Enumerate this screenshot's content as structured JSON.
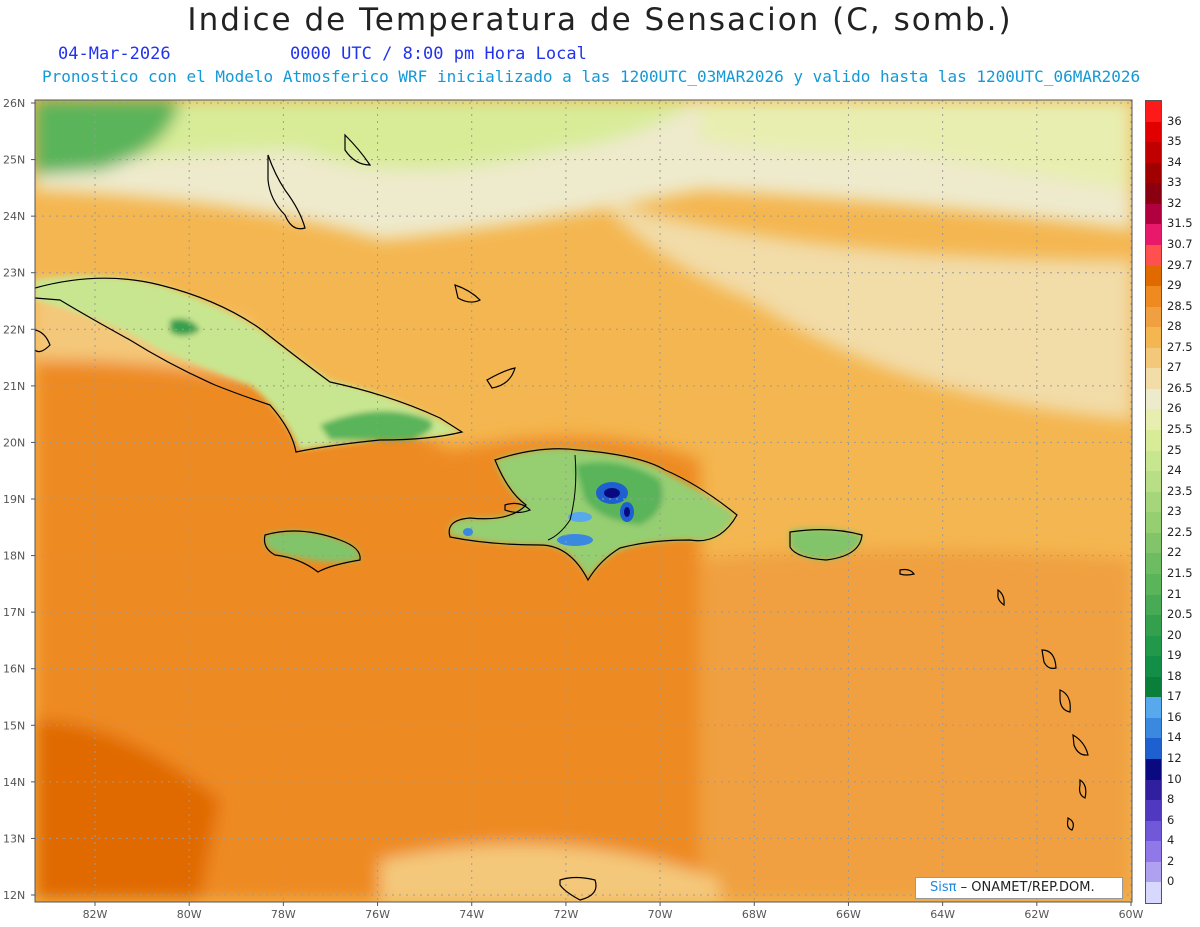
{
  "header": {
    "title": "Indice de Temperatura de Sensacion (C, somb.)",
    "date": "04-Mar-2026",
    "time": "0000 UTC / 8:00 pm Hora Local",
    "forecast": "Pronostico con el Modelo Atmosferico WRF inicializado a las 1200UTC_03MAR2026 y valido hasta las  1200UTC_06MAR2026"
  },
  "axes": {
    "lat_labels": [
      "26N",
      "25N",
      "24N",
      "23N",
      "22N",
      "21N",
      "20N",
      "19N",
      "18N",
      "17N",
      "16N",
      "15N",
      "14N",
      "13N",
      "12N"
    ],
    "lon_labels": [
      "82W",
      "80W",
      "78W",
      "76W",
      "74W",
      "72W",
      "70W",
      "68W",
      "66W",
      "64W",
      "62W",
      "60W"
    ]
  },
  "colorbar": {
    "levels": [
      "36",
      "35",
      "34",
      "33",
      "32",
      "31.5",
      "30.7",
      "29.7",
      "29",
      "28.5",
      "28",
      "27.5",
      "27",
      "26.5",
      "26",
      "25.5",
      "25",
      "24",
      "23.5",
      "23",
      "22.5",
      "22",
      "21.5",
      "21",
      "20.5",
      "20",
      "19",
      "18",
      "17",
      "16",
      "14",
      "12",
      "10",
      "8",
      "6",
      "4",
      "2",
      "0"
    ],
    "colors": [
      "#ff1a1a",
      "#e00000",
      "#c00000",
      "#a00000",
      "#8a0010",
      "#b00040",
      "#e8186a",
      "#ff5050",
      "#e06a00",
      "#ee8a20",
      "#f0a040",
      "#f4b650",
      "#f4c87a",
      "#f2dca8",
      "#eeeacc",
      "#e8eeb0",
      "#d8ec98",
      "#c8e690",
      "#b8de86",
      "#a6d67c",
      "#96ce72",
      "#82c46a",
      "#6ebc62",
      "#5ab45a",
      "#48aa54",
      "#34a04e",
      "#22984a",
      "#128e46",
      "#0a7f3c",
      "#58a8ee",
      "#3a88e0",
      "#1e60d0",
      "#0a0a80",
      "#3020a0",
      "#5038c0",
      "#7058d8",
      "#9078e8",
      "#b0a0f0",
      "#d8d8ff"
    ]
  },
  "credit": {
    "brand": "Sisπ",
    "text": " – ONAMET/REP.DOM."
  }
}
